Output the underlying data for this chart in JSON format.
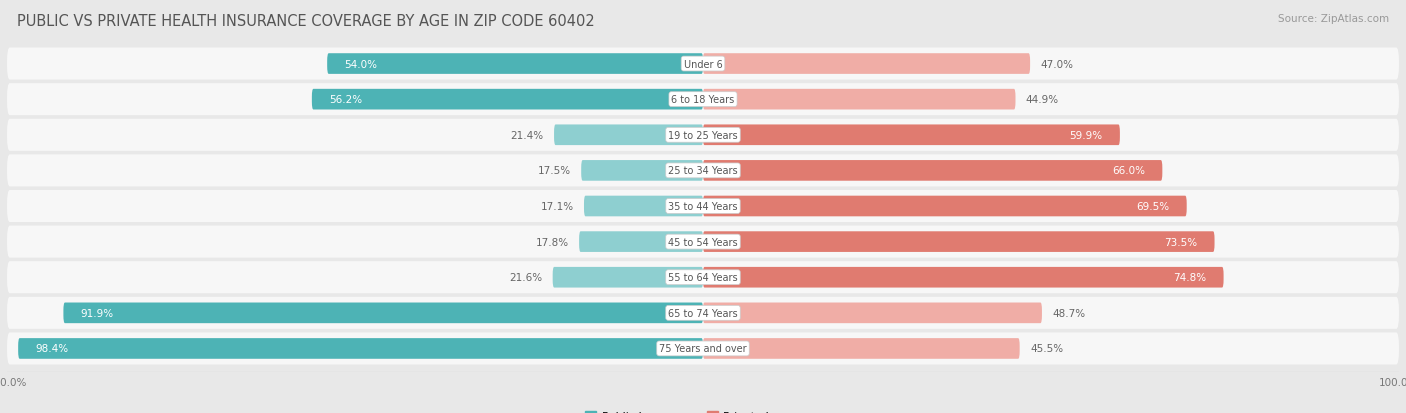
{
  "title": "PUBLIC VS PRIVATE HEALTH INSURANCE COVERAGE BY AGE IN ZIP CODE 60402",
  "source": "Source: ZipAtlas.com",
  "categories": [
    "Under 6",
    "6 to 18 Years",
    "19 to 25 Years",
    "25 to 34 Years",
    "35 to 44 Years",
    "45 to 54 Years",
    "55 to 64 Years",
    "65 to 74 Years",
    "75 Years and over"
  ],
  "public_values": [
    54.0,
    56.2,
    21.4,
    17.5,
    17.1,
    17.8,
    21.6,
    91.9,
    98.4
  ],
  "private_values": [
    47.0,
    44.9,
    59.9,
    66.0,
    69.5,
    73.5,
    74.8,
    48.7,
    45.5
  ],
  "public_color_dark": "#4db3b5",
  "public_color_light": "#8ecfd0",
  "private_color_dark": "#e07b70",
  "private_color_light": "#f0ada6",
  "background_color": "#e8e8e8",
  "row_bg_color": "#f7f7f7",
  "row_border_color": "#dddddd",
  "label_color_white": "#ffffff",
  "label_color_dark": "#666666",
  "center_label_color": "#555555",
  "max_value": 100.0,
  "legend_public": "Public Insurance",
  "legend_private": "Private Insurance",
  "title_fontsize": 10.5,
  "source_fontsize": 7.5,
  "bar_label_fontsize": 7.5,
  "category_fontsize": 7.0,
  "axis_label_fontsize": 7.5,
  "public_threshold": 50,
  "private_threshold": 55
}
